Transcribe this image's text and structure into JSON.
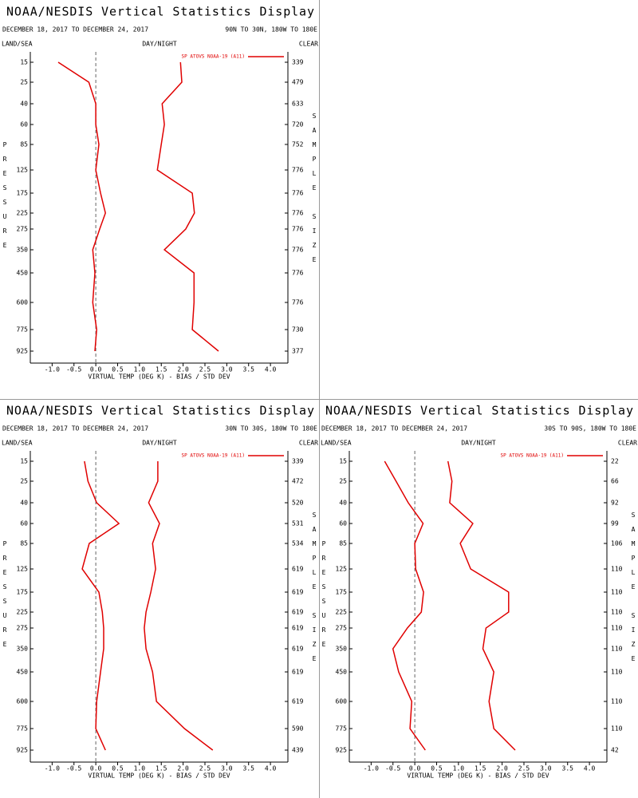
{
  "chart_data": [
    {
      "type": "line",
      "title": "NOAA/NESDIS Vertical Statistics Display",
      "subtitle": "DECEMBER 18, 2017 TO DECEMBER 24, 2017",
      "region": "90N TO 30N, 180W TO 180E",
      "land_sea": "LAND/SEA",
      "day_night": "DAY/NIGHT",
      "clear": "CLEAR",
      "ylabel": "PRESSURE",
      "y2label": "SAMPLE SIZE",
      "xlabel": "VIRTUAL TEMP (DEG K) - BIAS / STD DEV",
      "categories": [
        15,
        25,
        40,
        60,
        85,
        125,
        175,
        225,
        275,
        350,
        450,
        600,
        775,
        925
      ],
      "sample_sizes": [
        339,
        479,
        633,
        720,
        752,
        776,
        776,
        776,
        776,
        776,
        776,
        776,
        730,
        377
      ],
      "series": [
        {
          "name": "SP ATOVS NOAA-19 (A11)",
          "color": "#e00000",
          "values": [
            -0.86,
            -0.16,
            0.0,
            0.0,
            0.07,
            0.0,
            0.11,
            0.22,
            0.09,
            -0.07,
            -0.02,
            -0.07,
            0.02,
            -0.02
          ],
          "std_dev": [
            1.94,
            1.97,
            1.52,
            1.57,
            1.5,
            1.41,
            2.21,
            2.26,
            2.06,
            1.57,
            2.25,
            2.25,
            2.21,
            2.81
          ]
        }
      ],
      "xlim": [
        -1.5,
        4.4
      ],
      "xticks": [
        {
          "value": -1,
          "label": "-1.0"
        },
        -0.5,
        {
          "value": 0,
          "label": "0.0"
        },
        0.5,
        {
          "value": 1,
          "label": "1.0"
        },
        1.5,
        {
          "value": 2,
          "label": "2.0"
        },
        2.5,
        {
          "value": 3,
          "label": "3.0"
        },
        3.5,
        {
          "value": 4,
          "label": "4.0"
        }
      ]
    },
    {
      "type": "line",
      "title": "NOAA/NESDIS Vertical Statistics Display",
      "subtitle": "DECEMBER 18, 2017 TO DECEMBER 24, 2017",
      "region": "30N TO 30S, 180W TO 180E",
      "land_sea": "LAND/SEA",
      "day_night": "DAY/NIGHT",
      "clear": "CLEAR",
      "ylabel": "PRESSURE",
      "y2label": "SAMPLE SIZE",
      "xlabel": "VIRTUAL TEMP (DEG K) - BIAS / STD DEV",
      "categories": [
        15,
        25,
        40,
        60,
        85,
        125,
        175,
        225,
        275,
        350,
        450,
        600,
        775,
        925
      ],
      "sample_sizes": [
        339,
        472,
        520,
        531,
        534,
        619,
        619,
        619,
        619,
        619,
        619,
        619,
        590,
        439
      ],
      "series": [
        {
          "name": "SP ATOVS NOAA-19 (A11)",
          "color": "#e00000",
          "values": [
            -0.26,
            -0.18,
            0.02,
            0.53,
            -0.15,
            -0.31,
            0.07,
            0.15,
            0.18,
            0.18,
            0.11,
            0.02,
            0.0,
            0.22
          ],
          "std_dev": [
            1.42,
            1.42,
            1.21,
            1.46,
            1.3,
            1.37,
            1.26,
            1.15,
            1.11,
            1.15,
            1.3,
            1.39,
            2.03,
            2.68
          ]
        }
      ],
      "xlim": [
        -1.5,
        4.4
      ],
      "xticks": [
        {
          "value": -1,
          "label": "-1.0"
        },
        -0.5,
        {
          "value": 0,
          "label": "0.0"
        },
        0.5,
        {
          "value": 1,
          "label": "1.0"
        },
        1.5,
        {
          "value": 2,
          "label": "2.0"
        },
        2.5,
        {
          "value": 3,
          "label": "3.0"
        },
        3.5,
        {
          "value": 4,
          "label": "4.0"
        }
      ]
    },
    {
      "type": "line",
      "title": "NOAA/NESDIS Vertical Statistics Display",
      "subtitle": "DECEMBER 18, 2017 TO DECEMBER 24, 2017",
      "region": "30S TO 90S, 180W TO 180E",
      "land_sea": "LAND/SEA",
      "day_night": "DAY/NIGHT",
      "clear": "CLEAR",
      "ylabel": "PRESSURE",
      "y2label": "SAMPLE SIZE",
      "xlabel": "VIRTUAL TEMP (DEG K) - BIAS / STD DEV",
      "categories": [
        15,
        25,
        40,
        60,
        85,
        125,
        175,
        225,
        275,
        350,
        450,
        600,
        775,
        925
      ],
      "sample_sizes": [
        22,
        66,
        92,
        99,
        106,
        110,
        110,
        110,
        110,
        110,
        110,
        110,
        110,
        42
      ],
      "series": [
        {
          "name": "SP ATOVS NOAA-19 (A11)",
          "color": "#e00000",
          "values": [
            -0.69,
            -0.43,
            -0.15,
            0.19,
            0.0,
            0.02,
            0.2,
            0.15,
            -0.17,
            -0.5,
            -0.37,
            -0.07,
            -0.11,
            0.24
          ],
          "std_dev": [
            0.76,
            0.85,
            0.8,
            1.33,
            1.04,
            1.28,
            2.15,
            2.15,
            1.63,
            1.56,
            1.81,
            1.7,
            1.81,
            2.3
          ]
        }
      ],
      "xlim": [
        -1.5,
        4.4
      ],
      "xticks": [
        {
          "value": -1,
          "label": "-1.0"
        },
        -0.5,
        {
          "value": 0,
          "label": "0.0"
        },
        0.5,
        {
          "value": 1,
          "label": "1.0"
        },
        1.5,
        {
          "value": 2,
          "label": "2.0"
        },
        2.5,
        {
          "value": 3,
          "label": "3.0"
        },
        3.5,
        {
          "value": 4,
          "label": "4.0"
        }
      ]
    }
  ]
}
